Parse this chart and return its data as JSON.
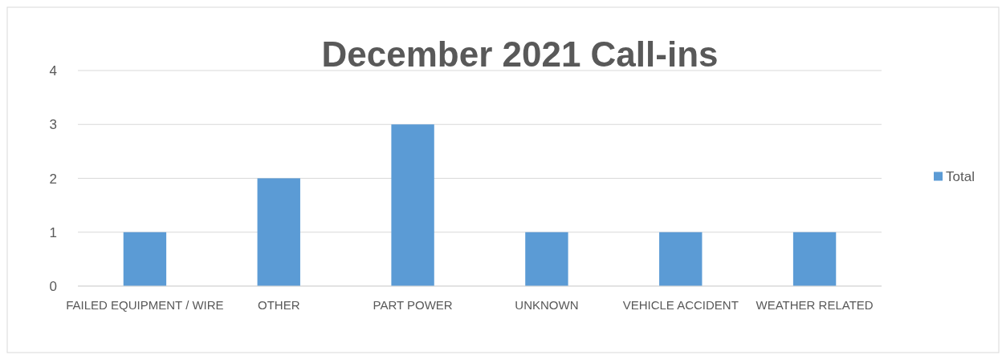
{
  "chart_data": {
    "type": "bar",
    "title": "December 2021 Call-ins",
    "categories": [
      "FAILED EQUIPMENT / WIRE",
      "OTHER",
      "PART POWER",
      "UNKNOWN",
      "VEHICLE ACCIDENT",
      "WEATHER RELATED"
    ],
    "series": [
      {
        "name": "Total",
        "color": "#5b9bd5",
        "values": [
          1,
          2,
          3,
          1,
          1,
          1
        ]
      }
    ],
    "ylim": [
      0,
      4
    ],
    "yticks": [
      0,
      1,
      2,
      3,
      4
    ],
    "grid": "y",
    "legend": "right"
  }
}
